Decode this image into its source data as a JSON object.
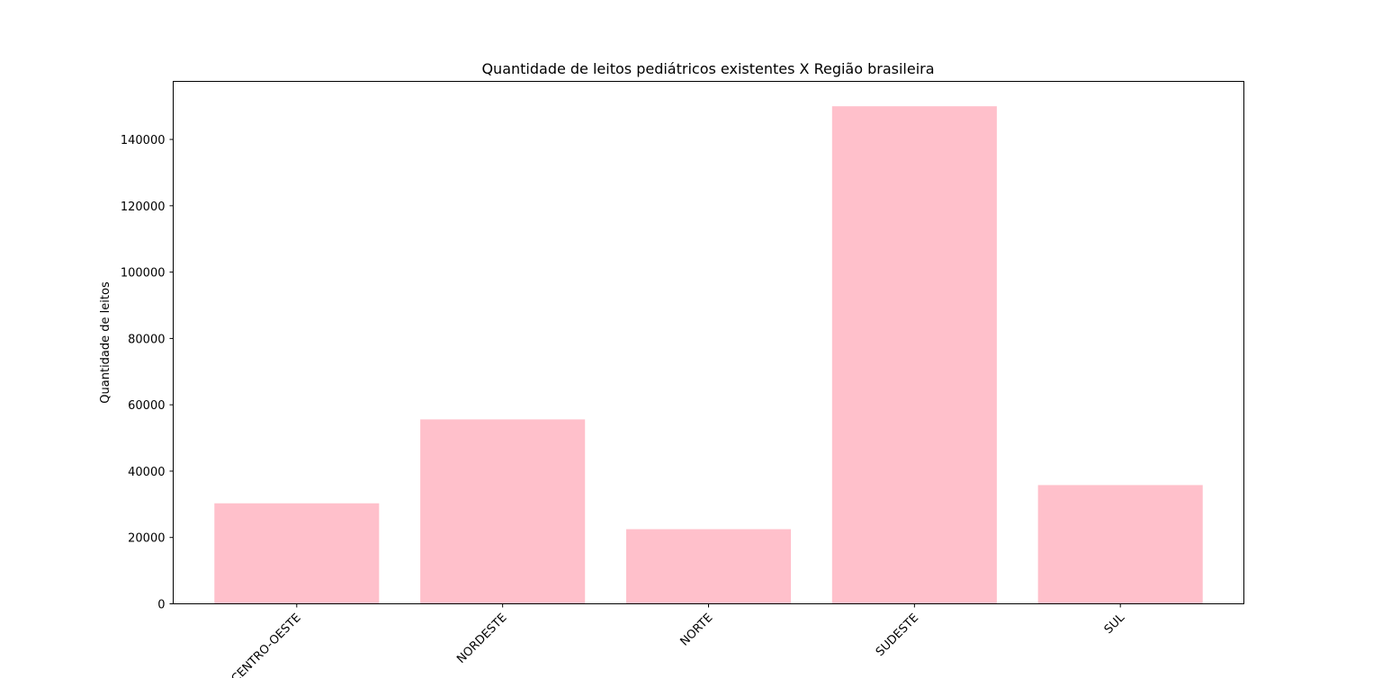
{
  "chart_data": {
    "type": "bar",
    "title": "Quantidade de leitos pediátricos existentes X Região brasileira",
    "xlabel": "",
    "ylabel": "Quantidade de leitos",
    "categories": [
      "CENTRO-OESTE",
      "NORDESTE",
      "NORTE",
      "SUDESTE",
      "SUL"
    ],
    "values": [
      30300,
      55600,
      22500,
      150000,
      35800
    ],
    "ylim": [
      0,
      157500
    ],
    "yticks": [
      0,
      20000,
      40000,
      60000,
      80000,
      100000,
      120000,
      140000
    ],
    "ytick_labels": [
      "0",
      "20000",
      "40000",
      "60000",
      "80000",
      "100000",
      "120000",
      "140000"
    ],
    "xtick_rotation": 45,
    "grid": false,
    "bar_color": "#FFC0CB",
    "axis_color": "#000000"
  }
}
